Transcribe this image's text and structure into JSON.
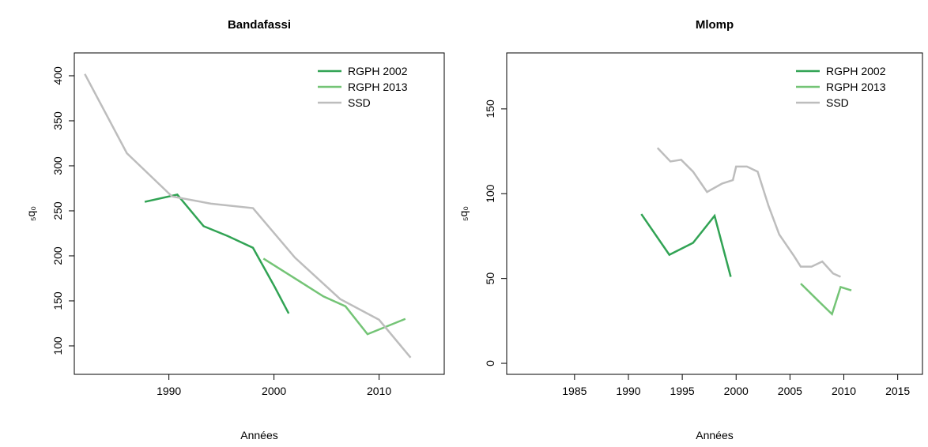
{
  "chart_data": [
    {
      "type": "line",
      "title": "Bandafassi",
      "x_label": "Années",
      "y_label": "₅q₀",
      "xlim": [
        1981,
        2016.2
      ],
      "xticks": [
        1990,
        2000,
        2010
      ],
      "ylim": [
        68.4,
        425.4
      ],
      "yticks": [
        100,
        150,
        200,
        250,
        300,
        350,
        400
      ],
      "legend": "top-right",
      "series": [
        {
          "name": "RGPH 2002",
          "color": "#31a354",
          "x": [
            1987.7,
            1990.8,
            1993.3,
            1995.6,
            1998,
            2000,
            2001.4
          ],
          "values": [
            260,
            268,
            233,
            222,
            209,
            167,
            136
          ]
        },
        {
          "name": "RGPH 2013",
          "color": "#74c476",
          "x": [
            1999,
            2004.7,
            2006.8,
            2008.9,
            2012.5
          ],
          "values": [
            197,
            155,
            144,
            113,
            130
          ]
        },
        {
          "name": "SSD",
          "color": "#bdbdbd",
          "x": [
            1982,
            1986,
            1990.3,
            1994,
            1998,
            2002,
            2006.3,
            2010,
            2013
          ],
          "values": [
            402,
            314,
            266,
            258,
            253,
            198,
            152,
            129,
            87
          ]
        }
      ]
    },
    {
      "type": "line",
      "title": "Mlomp",
      "x_label": "Années",
      "y_label": "₅q₀",
      "xlim": [
        1978.7,
        2017.3
      ],
      "xticks": [
        1985,
        1990,
        1995,
        2000,
        2005,
        2010,
        2015
      ],
      "ylim": [
        -6.5,
        183
      ],
      "yticks": [
        0,
        50,
        100,
        150
      ],
      "legend": "top-right",
      "series": [
        {
          "name": "RGPH 2002",
          "color": "#31a354",
          "x": [
            1991.2,
            1993.8,
            1996,
            1998,
            1999.5
          ],
          "values": [
            88,
            64,
            71,
            87,
            51
          ]
        },
        {
          "name": "RGPH 2013",
          "color": "#74c476",
          "x": [
            2006,
            2007.6,
            2008.9,
            2009.7,
            2010.7
          ],
          "values": [
            47,
            37,
            29,
            45,
            43
          ]
        },
        {
          "name": "SSD",
          "color": "#bdbdbd",
          "x": [
            1992.7,
            1993.9,
            1994.9,
            1996,
            1997.3,
            1998.7,
            1999.7,
            2000,
            2001,
            2002,
            2003,
            2004,
            2005.4,
            2006,
            2007,
            2008,
            2009,
            2009.7
          ],
          "values": [
            127,
            119,
            120,
            113,
            101,
            106,
            108,
            116,
            116,
            113,
            93,
            76,
            63,
            57,
            57,
            60,
            53,
            51
          ]
        }
      ]
    }
  ]
}
